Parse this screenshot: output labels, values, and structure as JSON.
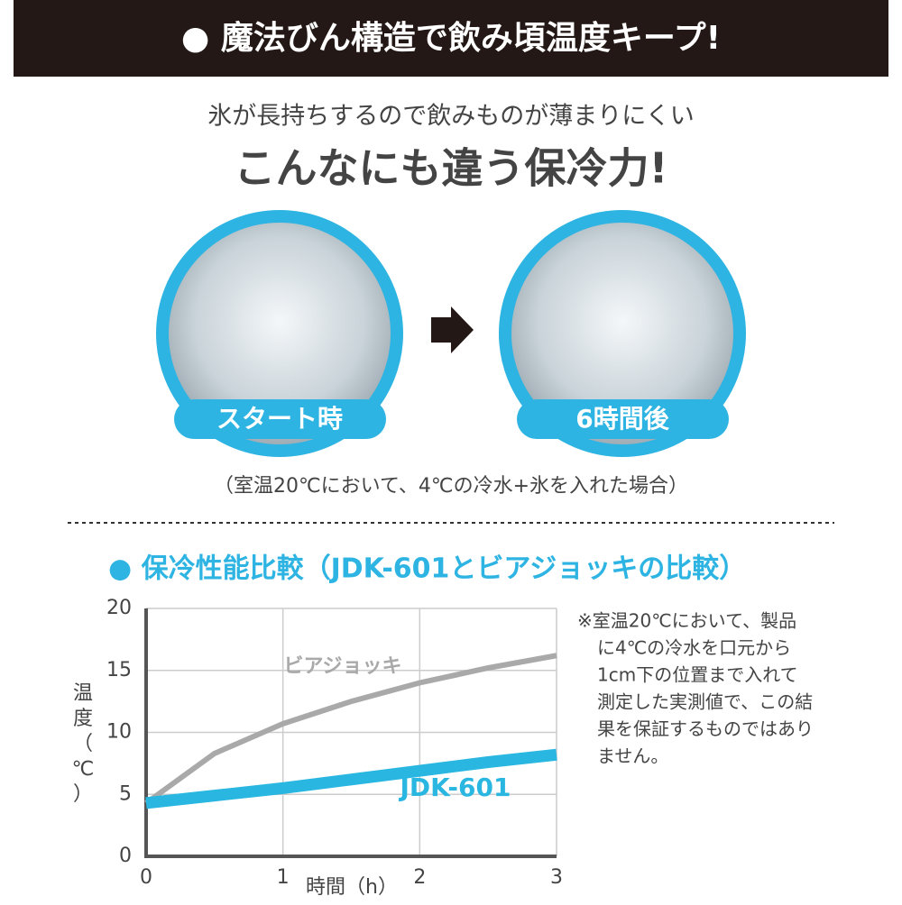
{
  "header": {
    "title": "● 魔法びん構造で飲み頃温度キープ!"
  },
  "intro": {
    "subtitle": "氷が長持ちするので飲みものが薄まりにくい",
    "title": "こんなにも違う保冷力!"
  },
  "photos": [
    {
      "label": "スタート時"
    },
    {
      "label": "6時間後"
    }
  ],
  "photo_note": "（室温20℃において、4℃の冷水+氷を入れた場合）",
  "section_title": "● 保冷性能比較（JDK-601とビアジョッキの比較）",
  "side_note": [
    "※室温20℃において、製品",
    "に4℃の冷水を口元から",
    "1cm下の位置まで入れて",
    "測定した実測値で、この結",
    "果を保証するものではあり",
    "ません。"
  ],
  "chart_data": {
    "type": "line",
    "x_label": "時間（h）",
    "y_label": "温度（℃）",
    "x": [
      0,
      0.5,
      1,
      1.5,
      2,
      2.5,
      3
    ],
    "series": [
      {
        "name": "ビアジョッキ",
        "color": "#a9a9a9",
        "values": [
          4.3,
          8.3,
          10.7,
          12.5,
          14,
          15.2,
          16.2
        ]
      },
      {
        "name": "JDK-601",
        "color": "#29b6e0",
        "values": [
          4.3,
          4.9,
          5.5,
          6.2,
          6.9,
          7.6,
          8.2
        ]
      }
    ],
    "xlim": [
      0,
      3
    ],
    "ylim": [
      0,
      20
    ],
    "xticks": [
      0,
      1,
      2,
      3
    ],
    "yticks": [
      0,
      5,
      10,
      15,
      20
    ],
    "grid": true
  }
}
